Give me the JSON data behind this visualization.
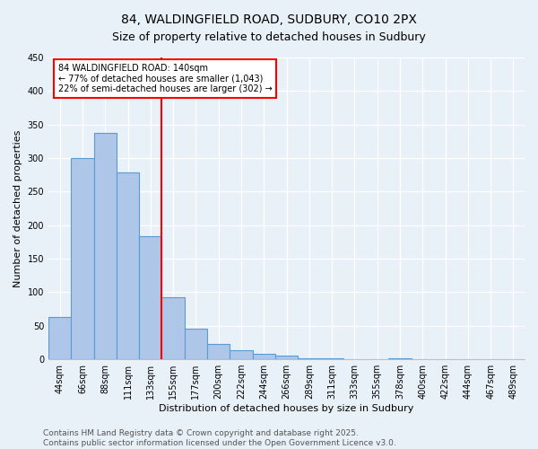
{
  "title": "84, WALDINGFIELD ROAD, SUDBURY, CO10 2PX",
  "subtitle": "Size of property relative to detached houses in Sudbury",
  "xlabel": "Distribution of detached houses by size in Sudbury",
  "ylabel": "Number of detached properties",
  "categories": [
    "44sqm",
    "66sqm",
    "88sqm",
    "111sqm",
    "133sqm",
    "155sqm",
    "177sqm",
    "200sqm",
    "222sqm",
    "244sqm",
    "266sqm",
    "289sqm",
    "311sqm",
    "333sqm",
    "355sqm",
    "378sqm",
    "400sqm",
    "422sqm",
    "444sqm",
    "467sqm",
    "489sqm"
  ],
  "values": [
    63,
    300,
    338,
    278,
    183,
    92,
    45,
    23,
    14,
    8,
    5,
    2,
    1,
    0,
    0,
    1,
    0,
    0,
    0,
    0,
    0
  ],
  "bar_color": "#aec6e8",
  "bar_edge_color": "#5b9bd5",
  "vline_bin": 4,
  "vline_color": "red",
  "ylim": [
    0,
    450
  ],
  "yticks": [
    0,
    50,
    100,
    150,
    200,
    250,
    300,
    350,
    400,
    450
  ],
  "annotation_title": "84 WALDINGFIELD ROAD: 140sqm",
  "annotation_line1": "← 77% of detached houses are smaller (1,043)",
  "annotation_line2": "22% of semi-detached houses are larger (302) →",
  "annotation_box_color": "#ffffff",
  "annotation_box_edge": "red",
  "bg_color": "#e8f0f8",
  "grid_color": "#ffffff",
  "footer1": "Contains HM Land Registry data © Crown copyright and database right 2025.",
  "footer2": "Contains public sector information licensed under the Open Government Licence v3.0.",
  "title_fontsize": 10,
  "subtitle_fontsize": 9,
  "axis_label_fontsize": 8,
  "tick_fontsize": 7,
  "annotation_fontsize": 7,
  "footer_fontsize": 6.5
}
